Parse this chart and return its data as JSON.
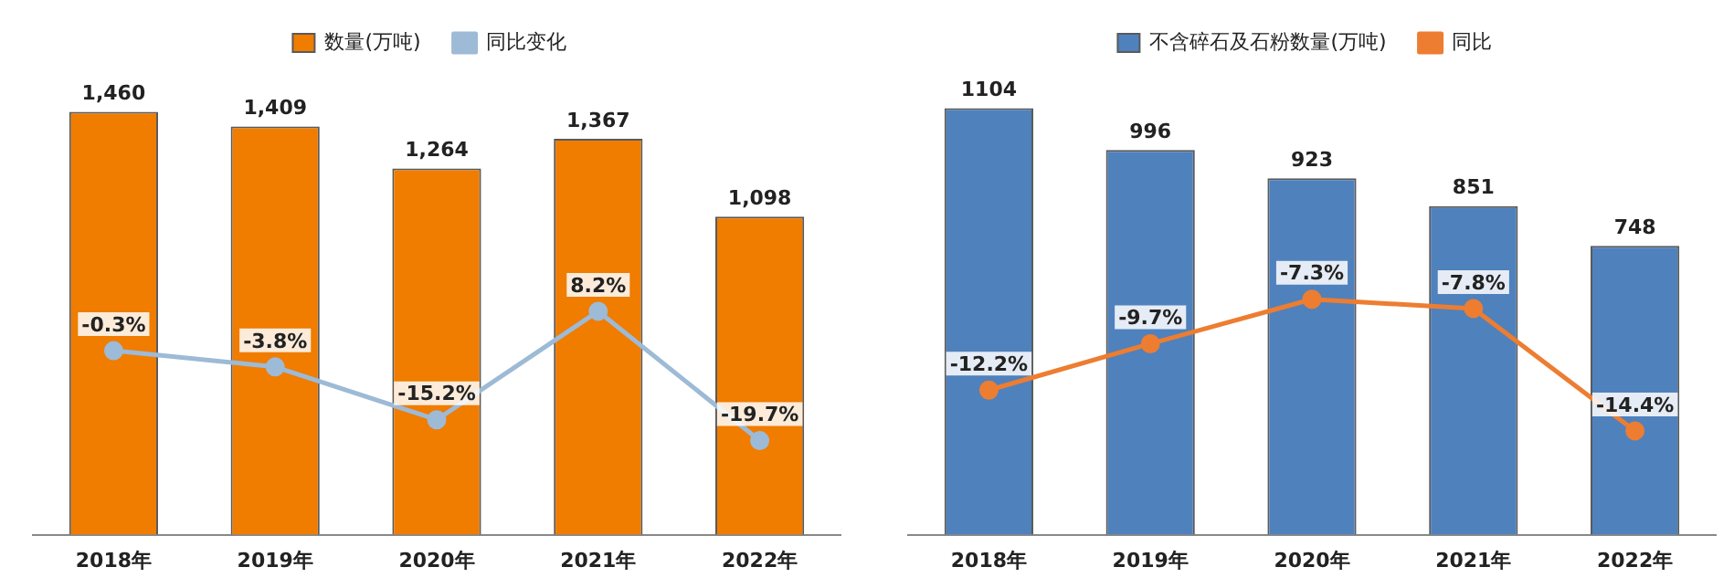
{
  "chart_data": [
    {
      "type": "bar",
      "categories": [
        "2018年",
        "2019年",
        "2020年",
        "2021年",
        "2022年"
      ],
      "tick_labels": "x",
      "grid": false,
      "legend": "top",
      "marker": "circle",
      "series": [
        {
          "name": "数量(万吨)",
          "color": "#f07c00",
          "values": [
            1460,
            1409,
            1264,
            1367,
            1098
          ],
          "value_labels": [
            "1,460",
            "1,409",
            "1,264",
            "1,367",
            "1,098"
          ]
        },
        {
          "name": "同比变化",
          "type": "line",
          "axis": "y2",
          "color": "#9dbad6",
          "values": [
            -0.3,
            -3.8,
            -15.2,
            8.2,
            -19.7
          ],
          "value_labels": [
            "-0.3%",
            "-3.8%",
            "-15.2%",
            "8.2%",
            "-19.7%"
          ]
        }
      ]
    },
    {
      "type": "bar",
      "categories": [
        "2018年",
        "2019年",
        "2020年",
        "2021年",
        "2022年"
      ],
      "tick_labels": "x",
      "grid": false,
      "legend": "top",
      "marker": "circle",
      "series": [
        {
          "name": "不含碎石及石粉数量(万吨)",
          "color": "#4f81bd",
          "values": [
            1104,
            996,
            923,
            851,
            748
          ],
          "value_labels": [
            "1104",
            "996",
            "923",
            "851",
            "748"
          ]
        },
        {
          "name": "同比",
          "type": "line",
          "axis": "y2",
          "color": "#ed7d31",
          "values": [
            -12.2,
            -9.7,
            -7.3,
            -7.8,
            -14.4
          ],
          "value_labels": [
            "-12.2%",
            "-9.7%",
            "-7.3%",
            "-7.8%",
            "-14.4%"
          ]
        }
      ]
    }
  ]
}
